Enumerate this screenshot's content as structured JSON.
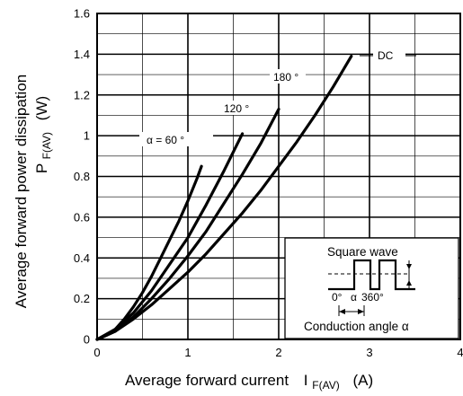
{
  "chart_data": {
    "type": "line",
    "xlabel": "Average forward current",
    "xlabel_symbol": "I",
    "xlabel_sub": "F(AV)",
    "xlabel_unit": "(A)",
    "ylabel_line1": "Average forward power dissipation",
    "ylabel_symbol": "P",
    "ylabel_sub": "F(AV)",
    "ylabel_unit": "(W)",
    "xlim": [
      0,
      4
    ],
    "ylim": [
      0,
      1.6
    ],
    "x_ticks": [
      0,
      1,
      2,
      3,
      4
    ],
    "y_ticks": [
      0,
      0.2,
      0.4,
      0.6,
      0.8,
      1,
      1.2,
      1.4,
      1.6
    ],
    "x_tick_labels": [
      "0",
      "1",
      "2",
      "3",
      "4"
    ],
    "y_tick_labels": [
      "0",
      "0.2",
      "0.4",
      "0.6",
      "0.8",
      "1",
      "1.2",
      "1.4",
      "1.6"
    ],
    "grid": true,
    "series": [
      {
        "name": "α = 60 °",
        "x": [
          0,
          0.1,
          0.2,
          0.3,
          0.4,
          0.5,
          0.6,
          0.7,
          0.8,
          0.9,
          1.0,
          1.1,
          1.15
        ],
        "y": [
          0,
          0.02,
          0.05,
          0.1,
          0.16,
          0.23,
          0.31,
          0.4,
          0.49,
          0.58,
          0.68,
          0.79,
          0.85
        ]
      },
      {
        "name": "120 °",
        "x": [
          0,
          0.2,
          0.4,
          0.6,
          0.8,
          1.0,
          1.2,
          1.4,
          1.6
        ],
        "y": [
          0,
          0.05,
          0.13,
          0.24,
          0.37,
          0.5,
          0.66,
          0.83,
          1.01
        ]
      },
      {
        "name": "180 °",
        "x": [
          0,
          0.2,
          0.4,
          0.6,
          0.8,
          1.0,
          1.2,
          1.4,
          1.6,
          1.8,
          2.0
        ],
        "y": [
          0,
          0.04,
          0.11,
          0.2,
          0.3,
          0.41,
          0.53,
          0.67,
          0.81,
          0.96,
          1.13
        ]
      },
      {
        "name": "DC",
        "x": [
          0,
          0.2,
          0.4,
          0.6,
          0.8,
          1.0,
          1.2,
          1.4,
          1.6,
          1.8,
          2.0,
          2.2,
          2.4,
          2.6,
          2.8
        ],
        "y": [
          0,
          0.04,
          0.1,
          0.17,
          0.25,
          0.33,
          0.42,
          0.52,
          0.62,
          0.73,
          0.85,
          0.97,
          1.1,
          1.24,
          1.39
        ]
      }
    ],
    "inset": {
      "title": "Square wave",
      "angle_start": "0°",
      "angle_mid": "α",
      "angle_end": "360°",
      "caption": "Conduction angle α"
    }
  }
}
